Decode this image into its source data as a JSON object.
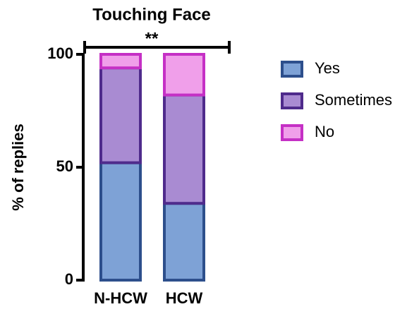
{
  "chart_data": {
    "type": "stacked_bar",
    "title": "Touching Face",
    "annotation": "**",
    "y_label": "% of replies",
    "categories": [
      "N-HCW",
      "HCW"
    ],
    "series": [
      {
        "name": "Yes",
        "color": "#7ea2d6",
        "stroke": "#2d4f8c",
        "values": [
          52,
          34
        ]
      },
      {
        "name": "Sometimes",
        "color": "#a98bd2",
        "stroke": "#4f2b8c",
        "values": [
          42,
          48
        ]
      },
      {
        "name": "No",
        "color": "#f09fea",
        "stroke": "#c530c5",
        "values": [
          6,
          18
        ]
      }
    ],
    "ylim": [
      0,
      100
    ],
    "yticks": [
      0,
      50,
      100
    ],
    "legend": "right"
  }
}
